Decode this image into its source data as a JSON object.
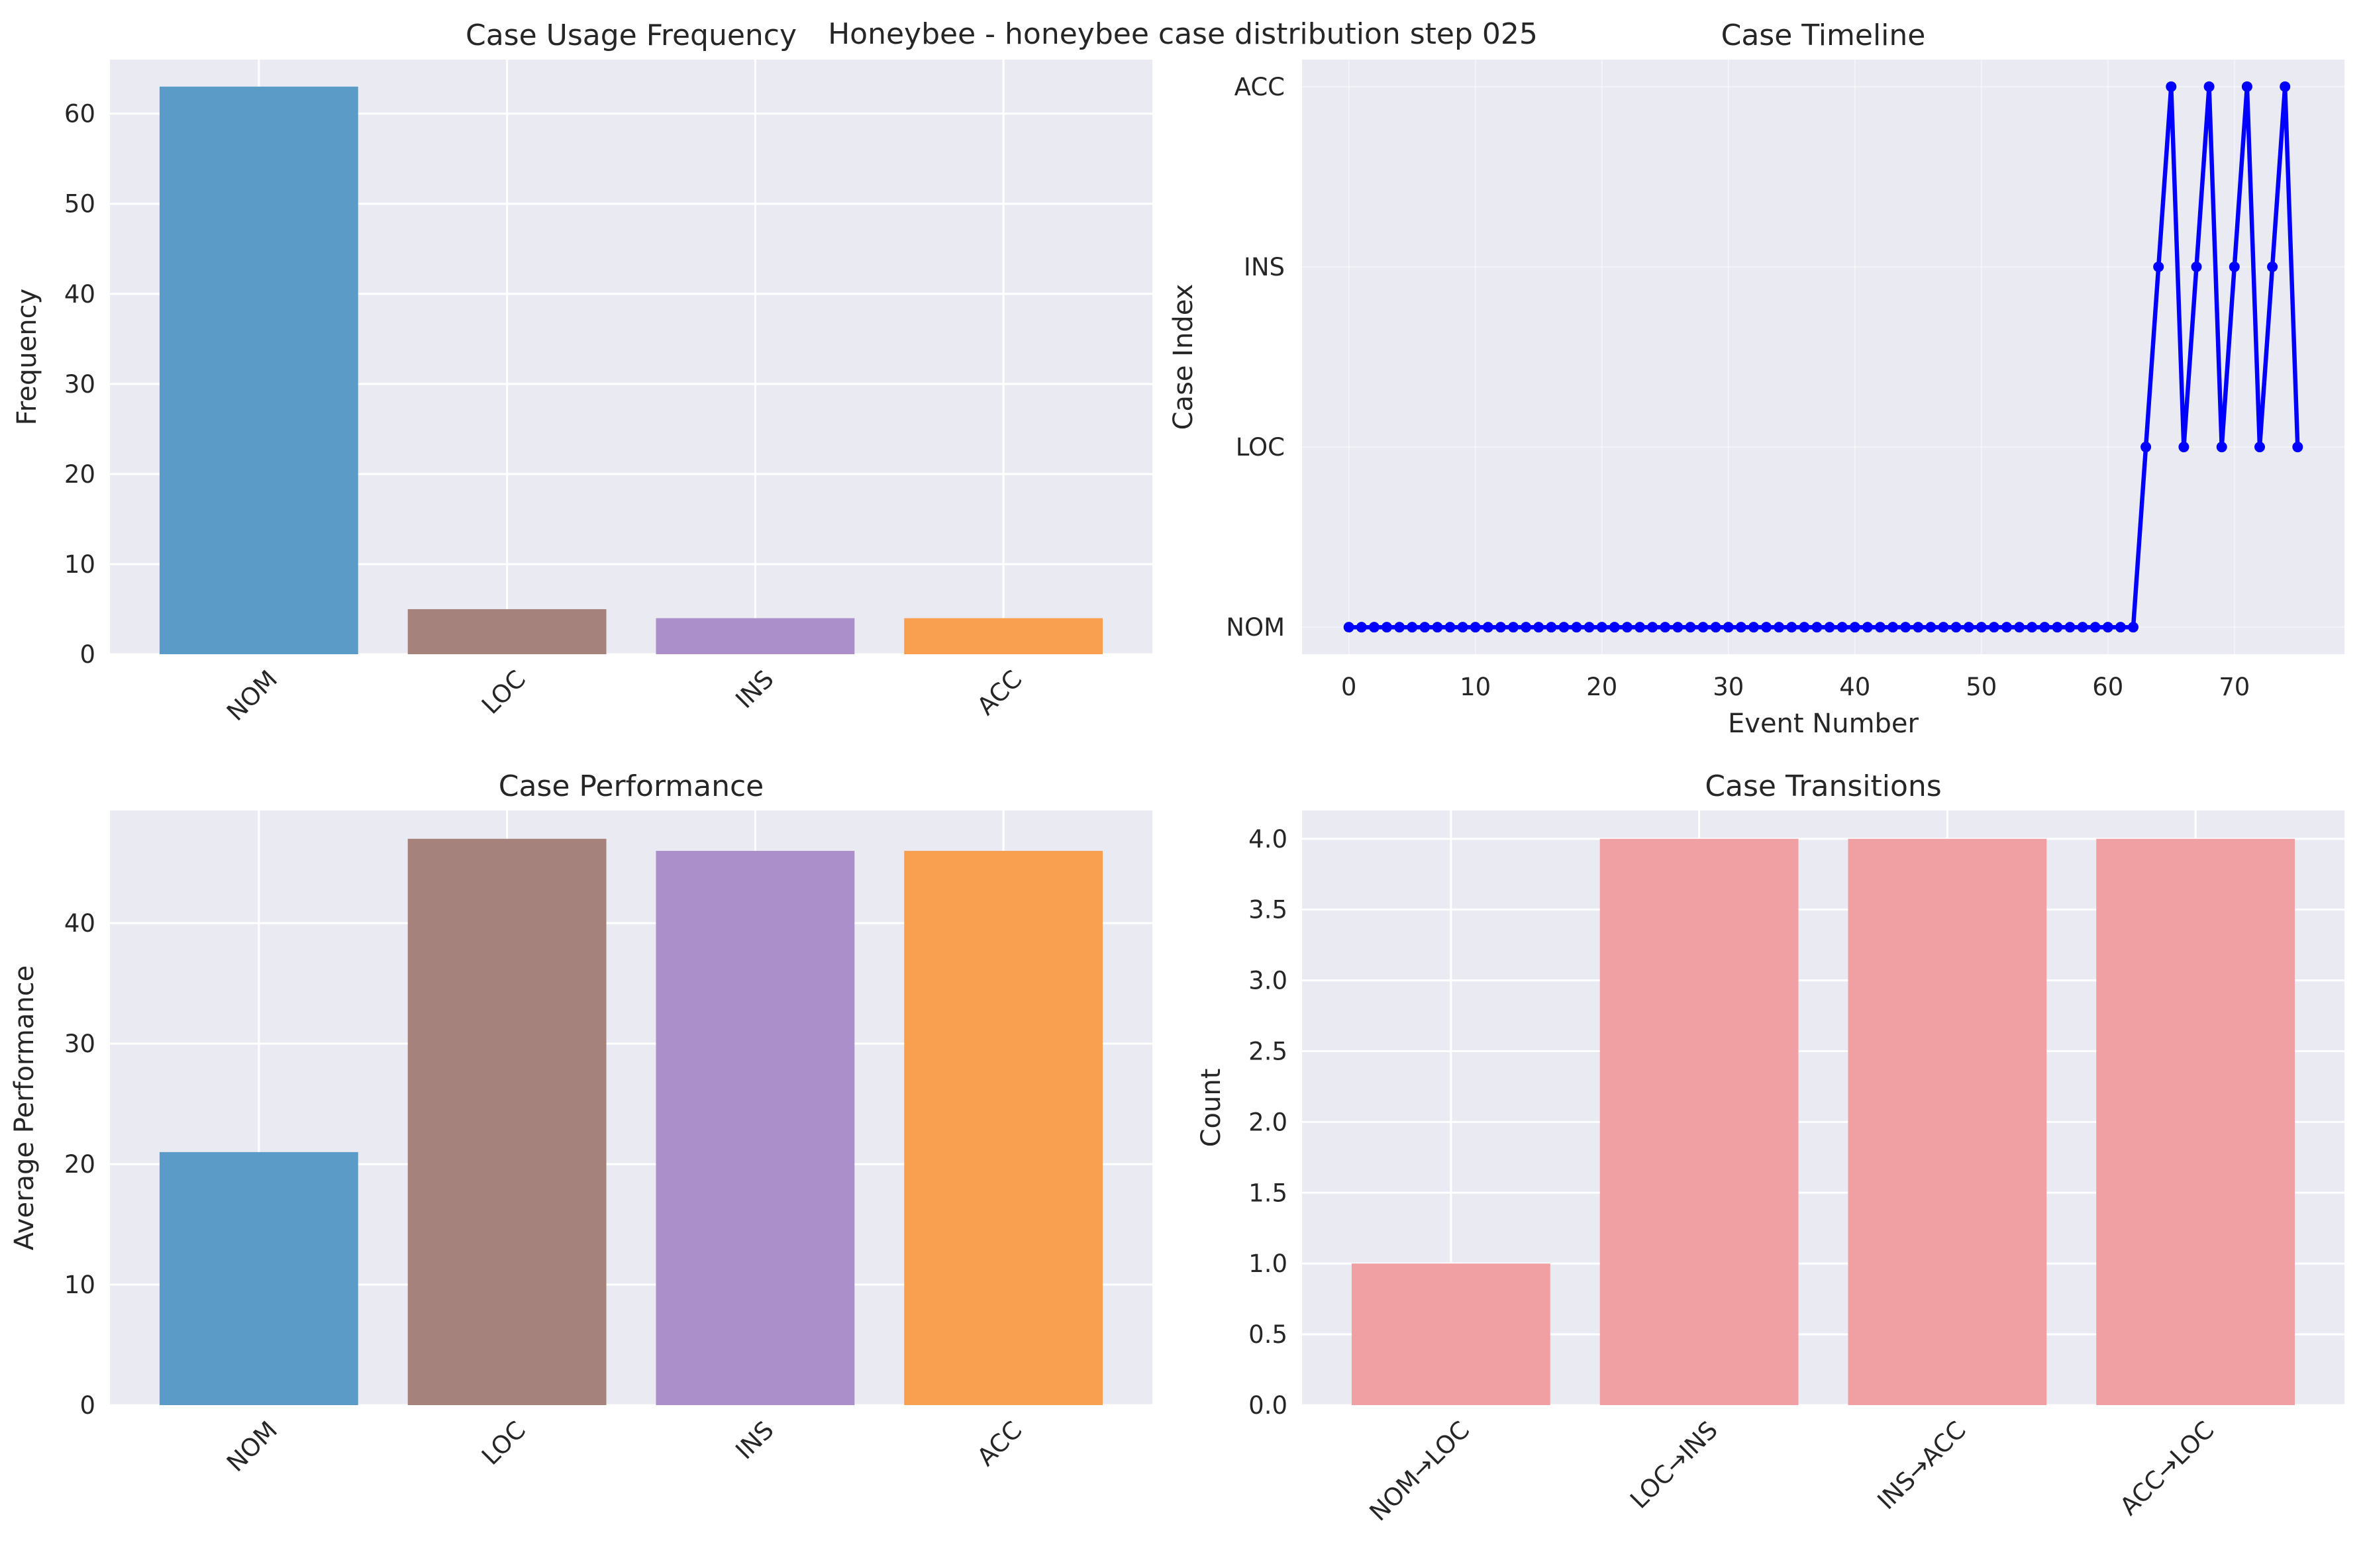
{
  "suptitle": "Honeybee - honeybee case distribution step 025",
  "colors": {
    "background": "#eaeaf2",
    "grid": "#ffffff",
    "NOM": "#5b9bc8",
    "LOC": "#a5827b",
    "INS": "#ab8fcb",
    "ACC": "#f9a050",
    "transition_bar": "#f0a0a2",
    "timeline_line": "#0000ff"
  },
  "chart_data": [
    {
      "id": "freq",
      "type": "bar",
      "title": "Case Usage Frequency",
      "xlabel": "",
      "ylabel": "Frequency",
      "categories": [
        "NOM",
        "LOC",
        "INS",
        "ACC"
      ],
      "values": [
        63,
        5,
        4,
        4
      ],
      "ylim": [
        0,
        66
      ],
      "yticks": [
        0,
        10,
        20,
        30,
        40,
        50,
        60
      ],
      "ytick_labels": [
        "0",
        "10",
        "20",
        "30",
        "40",
        "50",
        "60"
      ],
      "grid": true,
      "xtick_rotation": 45
    },
    {
      "id": "timeline",
      "type": "line",
      "title": "Case Timeline",
      "xlabel": "Event Number",
      "ylabel": "Case Index",
      "xlim": [
        -3.7,
        78.7
      ],
      "ylim": [
        -0.15,
        3.15
      ],
      "xticks": [
        0,
        10,
        20,
        30,
        40,
        50,
        60,
        70
      ],
      "xtick_labels": [
        "0",
        "10",
        "20",
        "30",
        "40",
        "50",
        "60",
        "70"
      ],
      "yticks": [
        0,
        1,
        2,
        3
      ],
      "ytick_labels": [
        "NOM",
        "LOC",
        "INS",
        "ACC"
      ],
      "grid": true,
      "x": [
        0,
        1,
        2,
        3,
        4,
        5,
        6,
        7,
        8,
        9,
        10,
        11,
        12,
        13,
        14,
        15,
        16,
        17,
        18,
        19,
        20,
        21,
        22,
        23,
        24,
        25,
        26,
        27,
        28,
        29,
        30,
        31,
        32,
        33,
        34,
        35,
        36,
        37,
        38,
        39,
        40,
        41,
        42,
        43,
        44,
        45,
        46,
        47,
        48,
        49,
        50,
        51,
        52,
        53,
        54,
        55,
        56,
        57,
        58,
        59,
        60,
        61,
        62,
        63,
        64,
        65,
        66,
        67,
        68,
        69,
        70,
        71,
        72,
        73,
        74,
        75
      ],
      "y": [
        0,
        0,
        0,
        0,
        0,
        0,
        0,
        0,
        0,
        0,
        0,
        0,
        0,
        0,
        0,
        0,
        0,
        0,
        0,
        0,
        0,
        0,
        0,
        0,
        0,
        0,
        0,
        0,
        0,
        0,
        0,
        0,
        0,
        0,
        0,
        0,
        0,
        0,
        0,
        0,
        0,
        0,
        0,
        0,
        0,
        0,
        0,
        0,
        0,
        0,
        0,
        0,
        0,
        0,
        0,
        0,
        0,
        0,
        0,
        0,
        0,
        0,
        0,
        1,
        2,
        3,
        1,
        2,
        3,
        1,
        2,
        3,
        1,
        2,
        3,
        1
      ]
    },
    {
      "id": "perf",
      "type": "bar",
      "title": "Case Performance",
      "xlabel": "",
      "ylabel": "Average Performance",
      "categories": [
        "NOM",
        "LOC",
        "INS",
        "ACC"
      ],
      "values": [
        21,
        47,
        46,
        46
      ],
      "ylim": [
        0,
        49.35
      ],
      "yticks": [
        0,
        10,
        20,
        30,
        40
      ],
      "ytick_labels": [
        "0",
        "10",
        "20",
        "30",
        "40"
      ],
      "grid": true,
      "xtick_rotation": 45
    },
    {
      "id": "trans",
      "type": "bar",
      "title": "Case Transitions",
      "xlabel": "",
      "ylabel": "Count",
      "categories": [
        "NOM→LOC",
        "LOC→INS",
        "INS→ACC",
        "ACC→LOC"
      ],
      "values": [
        1,
        4,
        4,
        4
      ],
      "ylim": [
        0,
        4.2
      ],
      "yticks": [
        0,
        0.5,
        1.0,
        1.5,
        2.0,
        2.5,
        3.0,
        3.5,
        4.0
      ],
      "ytick_labels": [
        "0.0",
        "0.5",
        "1.0",
        "1.5",
        "2.0",
        "2.5",
        "3.0",
        "3.5",
        "4.0"
      ],
      "grid": true,
      "xtick_rotation": 45
    }
  ]
}
